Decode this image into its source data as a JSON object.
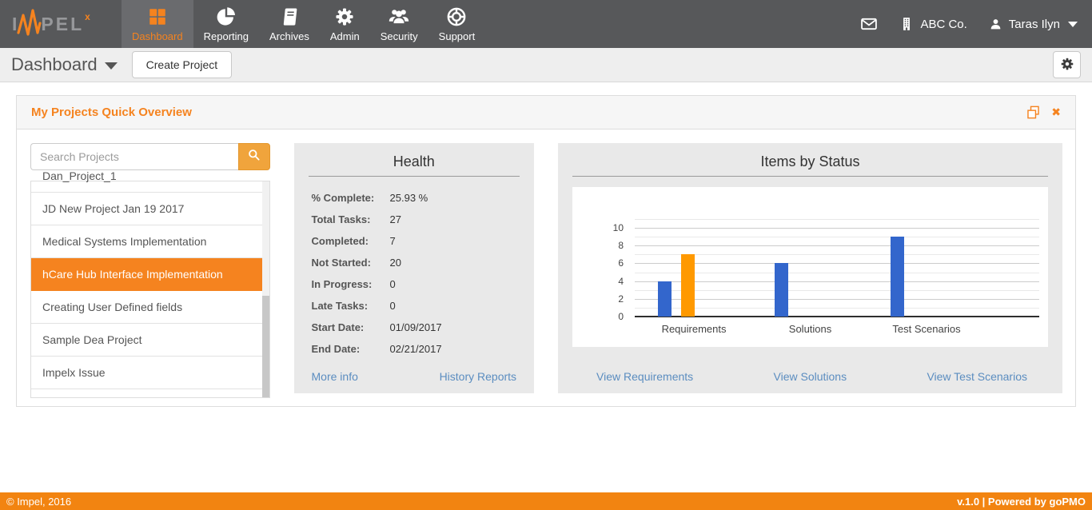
{
  "brand": {
    "logo_left": "I",
    "logo_right": "PEL",
    "logo_sup": "x",
    "pulse_icon": "heartbeat-pulse-icon"
  },
  "navbar": {
    "items": [
      {
        "label": "Dashboard",
        "icon": "grid-icon",
        "active": true
      },
      {
        "label": "Reporting",
        "icon": "pie-chart-icon",
        "active": false
      },
      {
        "label": "Archives",
        "icon": "book-icon",
        "active": false
      },
      {
        "label": "Admin",
        "icon": "gear-icon",
        "active": false
      },
      {
        "label": "Security",
        "icon": "users-icon",
        "active": false
      },
      {
        "label": "Support",
        "icon": "life-ring-icon",
        "active": false
      }
    ],
    "right": {
      "mail_icon": "envelope-icon",
      "company_icon": "building-icon",
      "company": "ABC Co.",
      "user_icon": "user-icon",
      "user": "Taras Ilyn",
      "caret_icon": "caret-down-icon"
    }
  },
  "subheader": {
    "title": "Dashboard",
    "create_button": "Create Project",
    "settings_icon": "gear-icon"
  },
  "panel": {
    "title": "My Projects Quick Overview",
    "copy_icon": "copy-icon",
    "close_icon": "close-icon",
    "search_placeholder": "Search Projects",
    "search_icon": "search-icon",
    "projects": [
      {
        "name": "Dan_Project_1",
        "selected": false
      },
      {
        "name": "JD New Project Jan 19 2017",
        "selected": false
      },
      {
        "name": "Medical Systems Implementation",
        "selected": false
      },
      {
        "name": "hCare Hub Interface Implementation",
        "selected": true
      },
      {
        "name": "Creating User Defined fields",
        "selected": false
      },
      {
        "name": "Sample Dea Project",
        "selected": false
      },
      {
        "name": "Impelx Issue",
        "selected": false
      }
    ],
    "health": {
      "title": "Health",
      "stats": [
        {
          "label": "% Complete:",
          "value": "25.93 %"
        },
        {
          "label": "Total Tasks:",
          "value": "27"
        },
        {
          "label": "Completed:",
          "value": "7"
        },
        {
          "label": "Not Started:",
          "value": "20"
        },
        {
          "label": "In Progress:",
          "value": "0"
        },
        {
          "label": "Late Tasks:",
          "value": "0"
        },
        {
          "label": "Start Date:",
          "value": "01/09/2017"
        },
        {
          "label": "End Date:",
          "value": "02/21/2017"
        }
      ],
      "links": {
        "more_info": "More info",
        "history_reports": "History Reports"
      }
    },
    "status": {
      "title": "Items by Status",
      "links": [
        "View Requirements",
        "View Solutions",
        "View Test Scenarios"
      ]
    }
  },
  "chart_data": {
    "type": "bar",
    "title": "Items by Status",
    "categories": [
      "Requirements",
      "Solutions",
      "Test Scenarios"
    ],
    "series": [
      {
        "name": "series-blue",
        "color": "#3366cc",
        "values": [
          4,
          6,
          9
        ]
      },
      {
        "name": "series-orange",
        "color": "#ff9900",
        "values": [
          7,
          0,
          0
        ]
      }
    ],
    "xlabel": "",
    "ylabel": "",
    "ylim": [
      0,
      11
    ],
    "yticks": [
      0,
      2,
      4,
      6,
      8,
      10
    ],
    "grid": true,
    "legend": "none"
  },
  "footer": {
    "left": "© Impel, 2016",
    "right": "v.1.0 | Powered by goPMO"
  },
  "colors": {
    "accent_orange": "#f5831f",
    "footer_orange": "#f28411",
    "search_button_orange": "#f0a43c",
    "navbar_bg": "#58585a",
    "active_tab_bg": "#6a6b6e",
    "link_blue": "#5b8dc0",
    "chart_blue": "#3366cc",
    "chart_orange": "#ff9900"
  }
}
